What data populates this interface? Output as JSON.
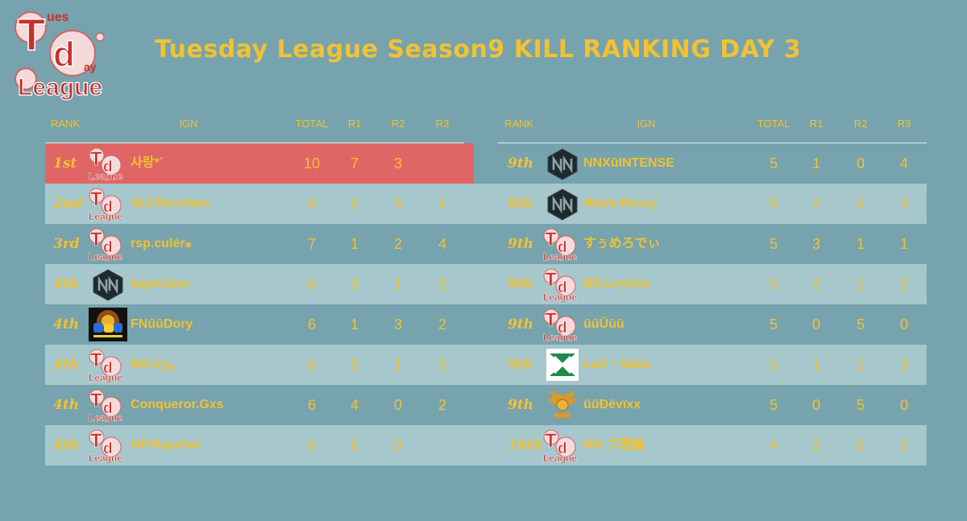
{
  "title": "Tuesday League Season9  KILL RANKING DAY 3",
  "logo": {
    "t": "T",
    "ues": "ues",
    "d": "d",
    "ay": "ay",
    "league": "League"
  },
  "headers": {
    "rank": "RANK",
    "ign": "IGN",
    "total": "TOTAL",
    "r1": "R1",
    "r2": "R2",
    "r3": "R3"
  },
  "colors": {
    "background": "#77a3ae",
    "stripe": "#a6c7cc",
    "highlight": "#e06666",
    "text": "#f1c232"
  },
  "left_rows": [
    {
      "rank": "1st",
      "ign": "사랑*´",
      "total": "10",
      "r1": "7",
      "r2": "3",
      "r3": "",
      "icon": "td-league-icon",
      "highlight": true
    },
    {
      "rank": "2nd",
      "ign": "SŁf.Renchan",
      "total": "8",
      "r1": "2",
      "r2": "5",
      "r3": "1",
      "icon": "td-league-icon"
    },
    {
      "rank": "3rd",
      "ign": "rsp.culér⁎",
      "total": "7",
      "r1": "1",
      "r2": "2",
      "r3": "4",
      "icon": "td-league-icon"
    },
    {
      "rank": "4th",
      "ign": "kapeūūxc",
      "total": "6",
      "r1": "3",
      "r2": "1",
      "r3": "2",
      "icon": "nn-team-icon"
    },
    {
      "rank": "4th",
      "ign": "FNūūDory",
      "total": "6",
      "r1": "1",
      "r2": "3",
      "r3": "2",
      "icon": "fn-team-icon"
    },
    {
      "rank": "4th",
      "ign": "BR.Iryو",
      "total": "6",
      "r1": "5",
      "r2": "1",
      "r3": "0",
      "icon": "td-league-icon"
    },
    {
      "rank": "4th",
      "ign": "Conqueror.Gxs",
      "total": "6",
      "r1": "4",
      "r2": "0",
      "r3": "2",
      "icon": "td-league-icon"
    },
    {
      "rank": "4th",
      "ign": "OP.Raychel",
      "total": "6",
      "r1": "6",
      "r2": "0",
      "r3": "",
      "icon": "td-league-icon"
    }
  ],
  "right_rows": [
    {
      "rank": "9th",
      "ign": "NNXūINTENSE",
      "total": "5",
      "r1": "1",
      "r2": "0",
      "r3": "4",
      "icon": "nn-team-icon"
    },
    {
      "rank": "9th",
      "ign": "Wave.Rexzy",
      "total": "5",
      "r1": "2",
      "r2": "0",
      "r3": "3",
      "icon": "nn-team-icon"
    },
    {
      "rank": "9th",
      "ign": "すぅめろでぃ",
      "total": "5",
      "r1": "3",
      "r2": "1",
      "r3": "1",
      "icon": "td-league-icon"
    },
    {
      "rank": "9th",
      "ign": "BR.Leyline",
      "total": "5",
      "r1": "2",
      "r2": "1",
      "r3": "2",
      "icon": "td-league-icon"
    },
    {
      "rank": "9th",
      "ign": "ūūŪūū",
      "total": "5",
      "r1": "0",
      "r2": "5",
      "r3": "0",
      "icon": "td-league-icon"
    },
    {
      "rank": "9th",
      "ign": "LaX・Saku",
      "total": "5",
      "r1": "1",
      "r2": "1",
      "r3": "3",
      "icon": "lax-team-icon"
    },
    {
      "rank": "9th",
      "ign": "ūūĐëvïxx",
      "total": "5",
      "r1": "0",
      "r2": "5",
      "r3": "0",
      "icon": "wing-team-icon"
    },
    {
      "rank": "16th",
      "ign": "BR.プ理論",
      "total": "4",
      "r1": "2",
      "r2": "0",
      "r3": "2",
      "icon": "td-league-icon"
    }
  ]
}
